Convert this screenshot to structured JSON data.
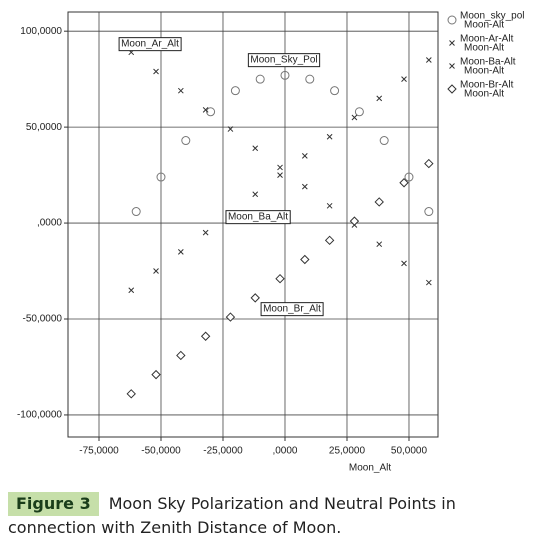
{
  "chart_data": {
    "type": "scatter",
    "x_label": "Moon_Alt",
    "xlim": [
      -87.5,
      61.7
    ],
    "ylim": [
      -111.5,
      110
    ],
    "xticks": [
      {
        "value": -75,
        "label": "-75,0000"
      },
      {
        "value": -50,
        "label": "-50,0000"
      },
      {
        "value": -25,
        "label": "-25,0000"
      },
      {
        "value": 0,
        "label": ",0000"
      },
      {
        "value": 25,
        "label": "25,0000"
      },
      {
        "value": 50,
        "label": "50,0000"
      }
    ],
    "yticks": [
      {
        "value": 100,
        "label": "100,0000"
      },
      {
        "value": 50,
        "label": "50,0000"
      },
      {
        "value": 0,
        "label": ",0000"
      },
      {
        "value": -50,
        "label": "-50,0000"
      },
      {
        "value": -100,
        "label": "-100,0000"
      }
    ],
    "grid": true,
    "series": [
      {
        "name": "Moon_sky_pol",
        "name_sub": "Moon-Alt",
        "marker": "circle",
        "color": "#777777",
        "x": [
          -60,
          -50,
          -40,
          -30,
          -20,
          -10,
          0,
          10,
          20,
          30,
          40,
          50,
          58
        ],
        "values": [
          6,
          24,
          43,
          58,
          69,
          75,
          77,
          75,
          69,
          58,
          43,
          24,
          6
        ]
      },
      {
        "name": "Moon-Ar-Alt",
        "name_sub": "Moon-Alt",
        "marker": "x",
        "color": "#333333",
        "x": [
          -62,
          -52,
          -42,
          -32,
          -22,
          -12,
          -2,
          8,
          18,
          28,
          38,
          48,
          58
        ],
        "values": [
          89,
          79,
          69,
          59,
          49,
          39,
          29,
          19,
          9,
          -1,
          -11,
          -21,
          -31
        ]
      },
      {
        "name": "Moon-Ba-Alt",
        "name_sub": "Moon-Alt",
        "marker": "x",
        "color": "#333333",
        "x": [
          -62,
          -52,
          -42,
          -32,
          -22,
          -12,
          -2,
          8,
          18,
          28,
          38,
          48,
          58
        ],
        "values": [
          -35,
          -25,
          -15,
          -5,
          5,
          15,
          25,
          35,
          45,
          55,
          65,
          75,
          85
        ]
      },
      {
        "name": "Moon-Br-Alt",
        "name_sub": "Moon-Alt",
        "marker": "diamond",
        "color": "#333333",
        "x": [
          -62,
          -52,
          -42,
          -32,
          -22,
          -12,
          -2,
          8,
          18,
          28,
          38,
          48,
          58
        ],
        "values": [
          -89,
          -79,
          -69,
          -59,
          -49,
          -39,
          -29,
          -19,
          -9,
          1,
          11,
          21,
          31
        ]
      }
    ],
    "annotations": [
      "Moon_Ar_Alt",
      "Moon_Sky_Pol",
      "Moon_Ba_Alt",
      "Moon_Br_Alt"
    ]
  },
  "caption": {
    "label": "Figure 3",
    "text": "Moon Sky Polarization and Neutral Points in connection with Zenith Distance of Moon."
  }
}
